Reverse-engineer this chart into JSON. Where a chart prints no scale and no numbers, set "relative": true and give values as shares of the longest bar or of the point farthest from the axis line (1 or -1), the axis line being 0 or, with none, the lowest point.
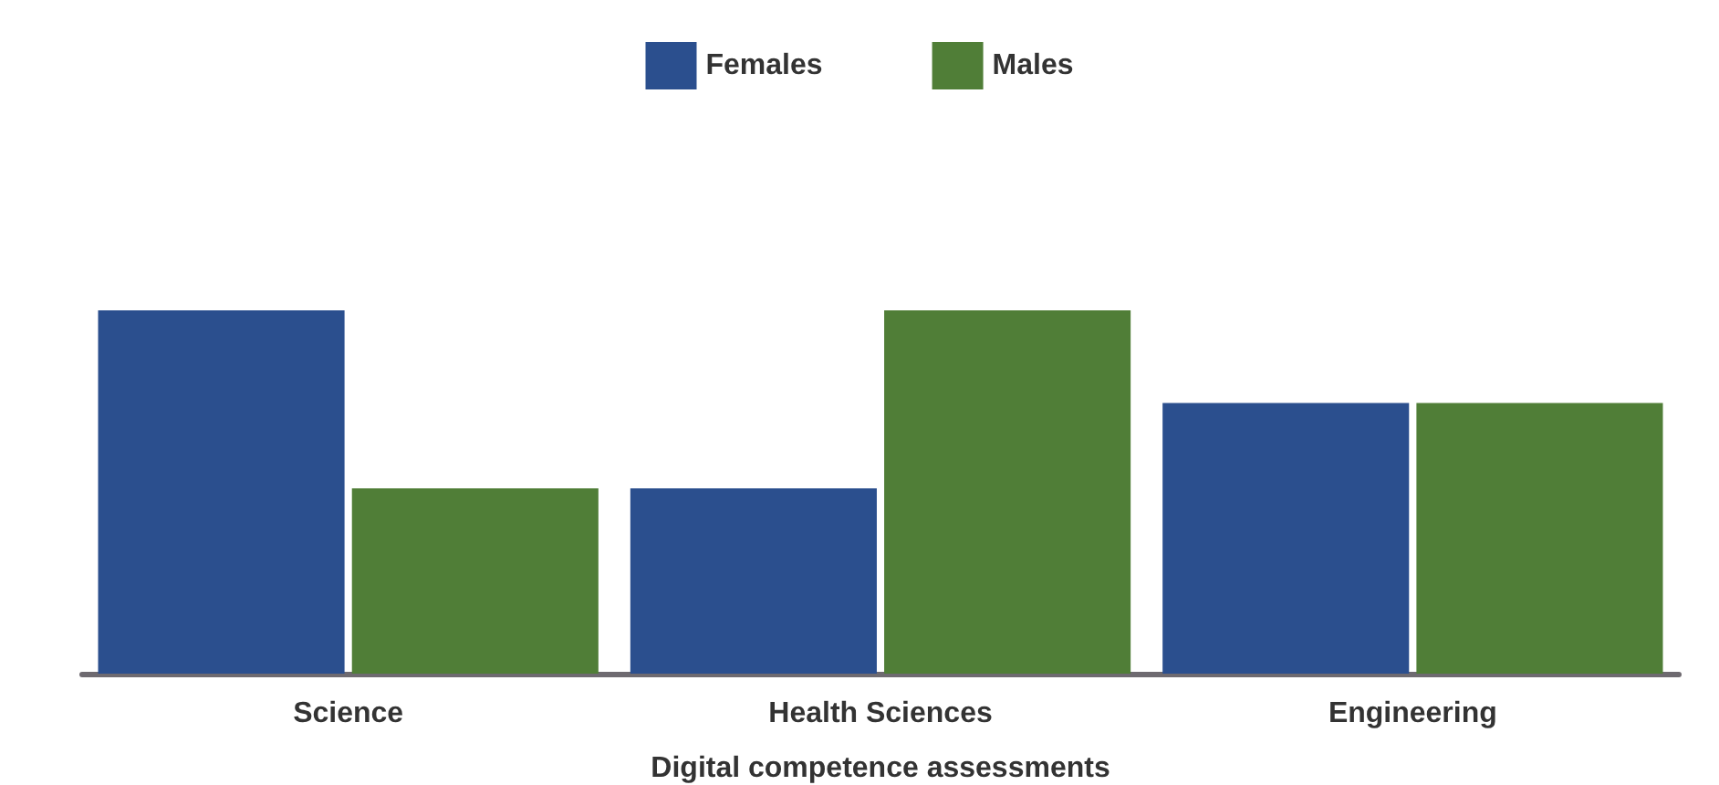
{
  "chart_data": {
    "type": "bar",
    "relative": true,
    "xlabel": "Digital competence assessments",
    "categories": [
      "Science",
      "Health Sciences",
      "Engineering"
    ],
    "series": [
      {
        "name": "Females",
        "color": "#2b4f8e",
        "values": [
          1,
          0.51,
          0.745
        ]
      },
      {
        "name": "Males",
        "color": "#507e37",
        "values": [
          0.51,
          1,
          0.745
        ]
      }
    ],
    "legend": "top",
    "grid": false
  }
}
